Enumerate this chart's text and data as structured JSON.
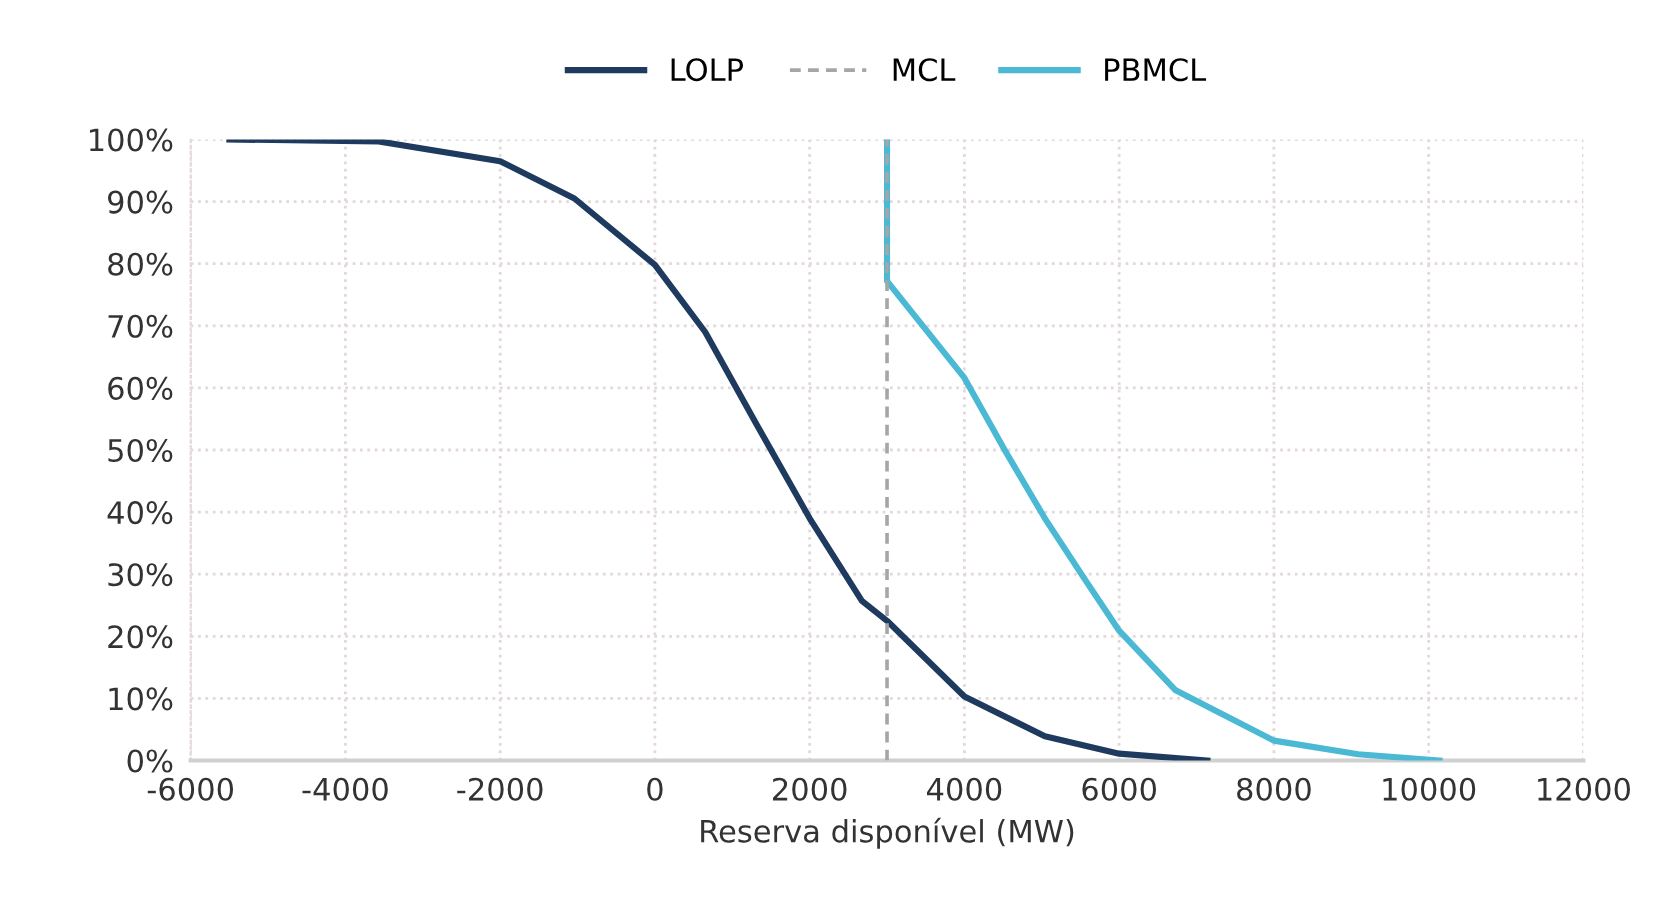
{
  "chart_data": {
    "type": "line",
    "xlabel": "Reserva disponível (MW)",
    "series": [
      {
        "name": "LOLP",
        "color": "#1f3a5f",
        "line_style": "solid",
        "x": [
          -5500,
          -3570,
          -2000,
          -1040,
          0,
          650,
          1320,
          2000,
          2675,
          3000,
          4000,
          5040,
          6000,
          7140
        ],
        "values": [
          100,
          99.7,
          96.5,
          90.5,
          79.8,
          69,
          54,
          39,
          25.7,
          22.5,
          10.3,
          3.9,
          1.1,
          0
        ]
      },
      {
        "name": "MCL",
        "color": "#a6a6a6",
        "line_style": "dashed",
        "x": [
          3000,
          3000
        ],
        "values": [
          0,
          100
        ]
      },
      {
        "name": "PBMCL",
        "color": "#4bb8d4",
        "line_style": "solid",
        "x": [
          3000,
          3000,
          4000,
          4530,
          5040,
          5540,
          6000,
          6730,
          8000,
          9090,
          10140
        ],
        "values": [
          100,
          77.2,
          61.6,
          49.8,
          39,
          29.5,
          20.9,
          11.3,
          3.2,
          1,
          0
        ]
      }
    ],
    "xlim": [
      -6000,
      12000
    ],
    "xticks": [
      -6000,
      -4000,
      -2000,
      0,
      2000,
      4000,
      6000,
      8000,
      10000,
      12000
    ],
    "ylim": [
      0,
      100
    ],
    "yticks": [
      {
        "value": 0,
        "label": "0%"
      },
      {
        "value": 10,
        "label": "10%"
      },
      {
        "value": 20,
        "label": "20%"
      },
      {
        "value": 30,
        "label": "30%"
      },
      {
        "value": 40,
        "label": "40%"
      },
      {
        "value": 50,
        "label": "50%"
      },
      {
        "value": 60,
        "label": "60%"
      },
      {
        "value": 70,
        "label": "70%"
      },
      {
        "value": 80,
        "label": "80%"
      },
      {
        "value": 90,
        "label": "90%"
      },
      {
        "value": 100,
        "label": "100%"
      }
    ],
    "grid": true,
    "legend": "top",
    "marker": "none"
  }
}
